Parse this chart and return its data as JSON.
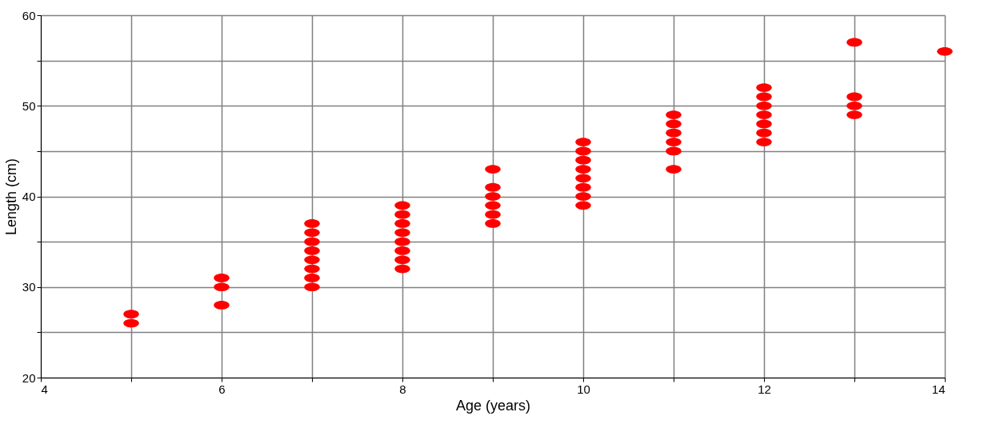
{
  "chart_data": {
    "type": "scatter",
    "xlabel": "Age (years)",
    "ylabel": "Length (cm)",
    "x": [
      5,
      5,
      6,
      6,
      6,
      7,
      7,
      7,
      7,
      7,
      7,
      7,
      7,
      8,
      8,
      8,
      8,
      8,
      8,
      8,
      8,
      9,
      9,
      9,
      9,
      9,
      9,
      10,
      10,
      10,
      10,
      10,
      10,
      10,
      10,
      11,
      11,
      11,
      11,
      11,
      11,
      12,
      12,
      12,
      12,
      12,
      12,
      12,
      13,
      13,
      13,
      13,
      14
    ],
    "series": [
      {
        "color": "#ff0000",
        "values": [
          27,
          26,
          31,
          30,
          28,
          37,
          36,
          35,
          34,
          33,
          32,
          31,
          30,
          39,
          38,
          37,
          36,
          35,
          34,
          33,
          32,
          43,
          41,
          40,
          39,
          38,
          37,
          46,
          45,
          44,
          43,
          42,
          41,
          40,
          39,
          49,
          48,
          47,
          46,
          45,
          43,
          52,
          51,
          50,
          49,
          48,
          47,
          46,
          57,
          51,
          50,
          49,
          56
        ]
      }
    ],
    "xlim": [
      4,
      14
    ],
    "xticks": [
      4,
      {
        "value": 5,
        "label": null
      },
      6,
      {
        "value": 7,
        "label": null
      },
      8,
      {
        "value": 9,
        "label": null
      },
      10,
      {
        "value": 11,
        "label": null
      },
      12,
      {
        "value": 13,
        "label": null
      },
      14
    ],
    "ylim": [
      20,
      60
    ],
    "yticks": [
      20,
      {
        "value": 25,
        "label": null
      },
      30,
      {
        "value": 35,
        "label": null
      },
      40,
      {
        "value": 45,
        "label": null
      },
      50,
      {
        "value": 55,
        "label": null
      },
      60
    ],
    "grid": true,
    "marker": "circle"
  }
}
